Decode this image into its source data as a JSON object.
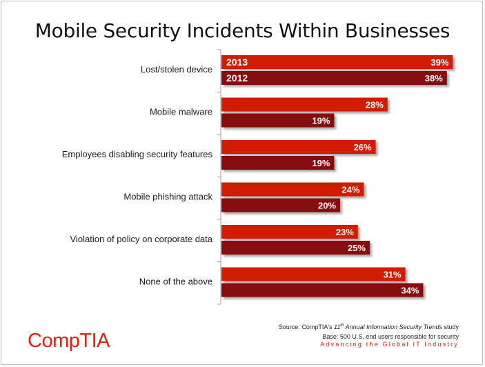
{
  "chart_data": {
    "type": "bar",
    "orientation": "horizontal",
    "title": "Mobile Security Incidents Within Businesses",
    "categories": [
      "Lost/stolen device",
      "Mobile malware",
      "Employees disabling security features",
      "Mobile phishing attack",
      "Violation of policy on corporate data",
      "None of the above"
    ],
    "series": [
      {
        "name": "2013",
        "values": [
          39,
          28,
          26,
          24,
          23,
          31
        ],
        "labels": [
          "39%",
          "28%",
          "26%",
          "24%",
          "23%",
          "31%"
        ]
      },
      {
        "name": "2012",
        "values": [
          38,
          19,
          19,
          20,
          25,
          34
        ],
        "labels": [
          "38%",
          "19%",
          "19%",
          "20%",
          "25%",
          "34%"
        ]
      }
    ],
    "unit": "%",
    "xlim": [
      0,
      40
    ],
    "grid": false,
    "legend": "inside the first category's bars"
  },
  "colors": {
    "series_2013": "#d21f06",
    "series_2012": "#861008",
    "axis": "#999999",
    "brand": "#e02010"
  },
  "footer": {
    "source_prefix": "Source: CompTIA's ",
    "source_sup": "th",
    "source_italic_num": "11",
    "source_italic": " Annual Information Security Trends",
    "source_suffix": " study",
    "base": "Base: 500 U.S. end users responsible for security",
    "tagline": "Advancing the Global IT Industry"
  },
  "logo": {
    "text": "CompTIA",
    "mark": "."
  }
}
